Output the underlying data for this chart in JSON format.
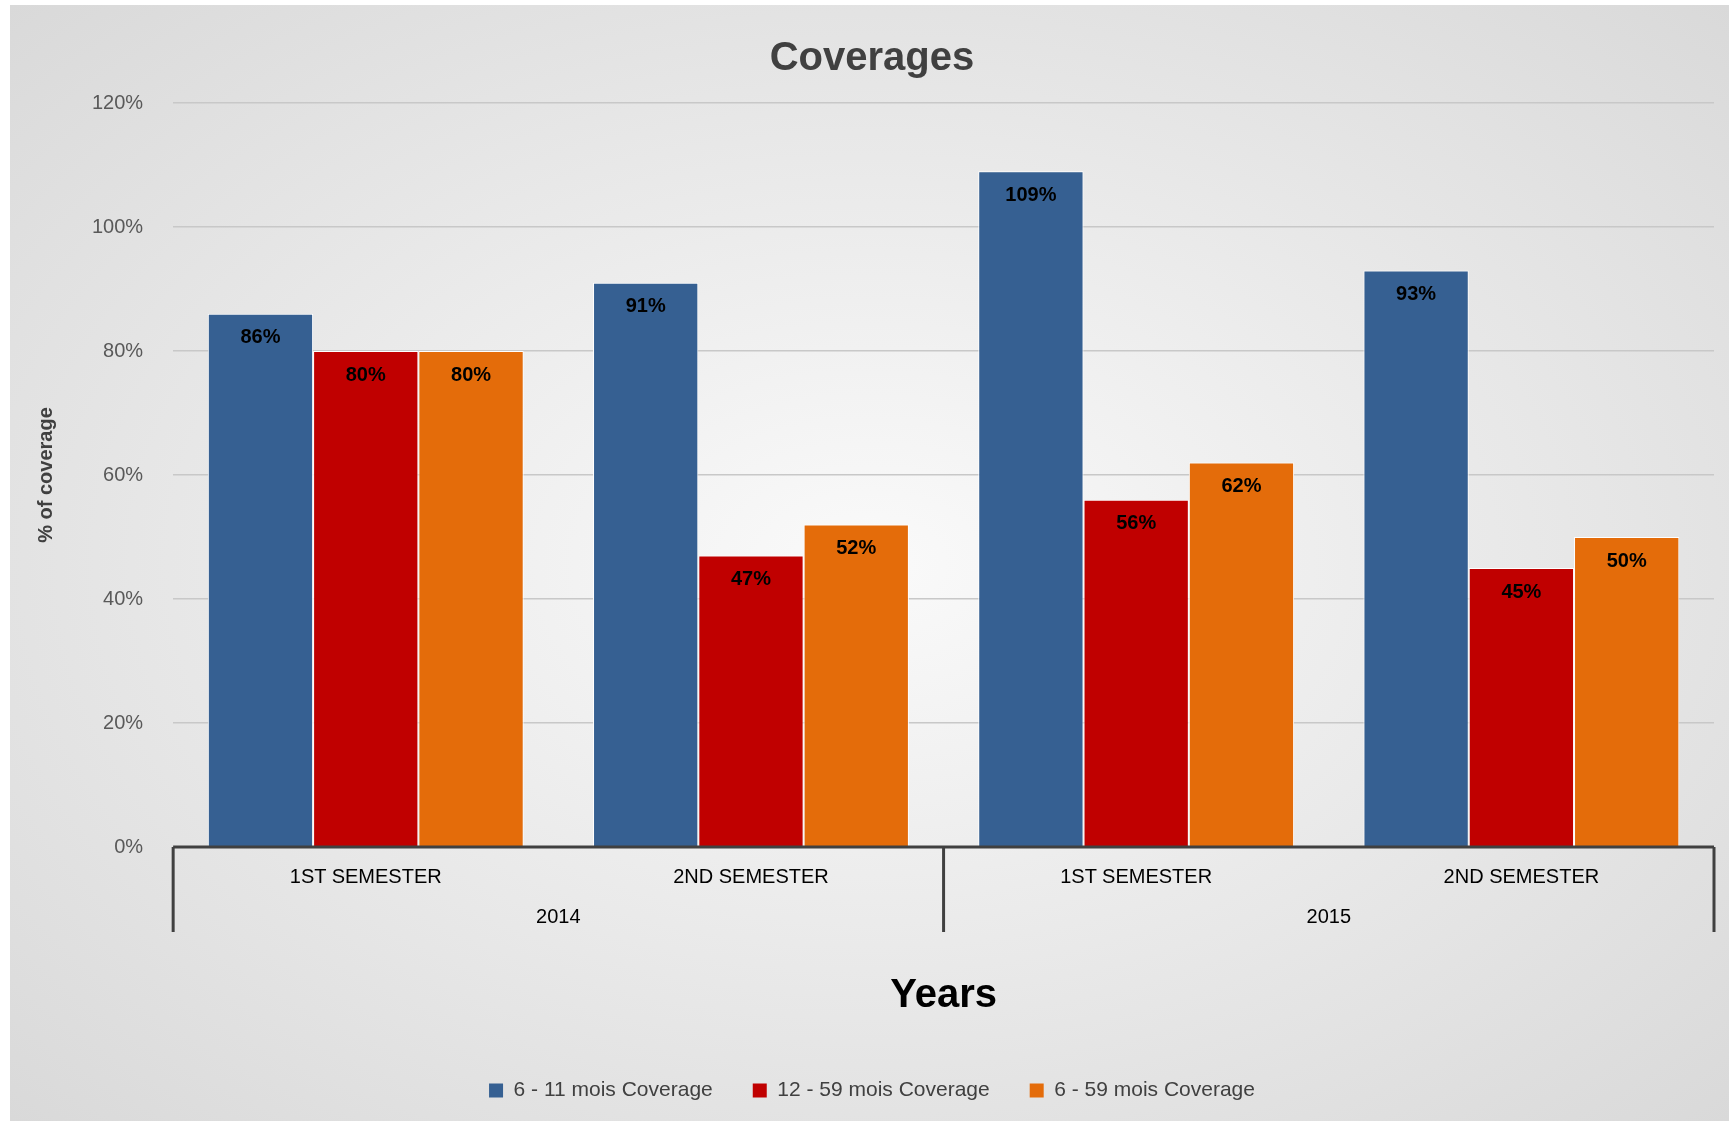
{
  "chart_data": {
    "type": "bar",
    "title": "Coverages",
    "xlabel": "Years",
    "ylabel": "% of coverage",
    "categories": [
      "1ST SEMESTER",
      "2ND SEMESTER",
      "1ST SEMESTER",
      "2ND SEMESTER"
    ],
    "annotations": [
      "2014",
      "2015"
    ],
    "series": [
      {
        "name": "6 - 11 mois Coverage",
        "color": "#366092",
        "values": [
          86,
          91,
          109,
          93
        ],
        "value_labels": [
          "86%",
          "91%",
          "109%",
          "93%"
        ]
      },
      {
        "name": "12 - 59 mois Coverage",
        "color": "#c00000",
        "values": [
          80,
          47,
          56,
          45
        ],
        "value_labels": [
          "80%",
          "47%",
          "56%",
          "45%"
        ]
      },
      {
        "name": "6 - 59 mois Coverage",
        "color": "#e46c0a",
        "values": [
          80,
          52,
          62,
          50
        ],
        "value_labels": [
          "80%",
          "52%",
          "62%",
          "50%"
        ]
      }
    ],
    "ylim": [
      0,
      120
    ],
    "yticks": [
      {
        "value": 0,
        "label": "0%"
      },
      {
        "value": 20,
        "label": "20%"
      },
      {
        "value": 40,
        "label": "40%"
      },
      {
        "value": 60,
        "label": "60%"
      },
      {
        "value": 80,
        "label": "80%"
      },
      {
        "value": 100,
        "label": "100%"
      },
      {
        "value": 120,
        "label": "120%"
      }
    ],
    "grid": "y",
    "legend": "bottom"
  }
}
